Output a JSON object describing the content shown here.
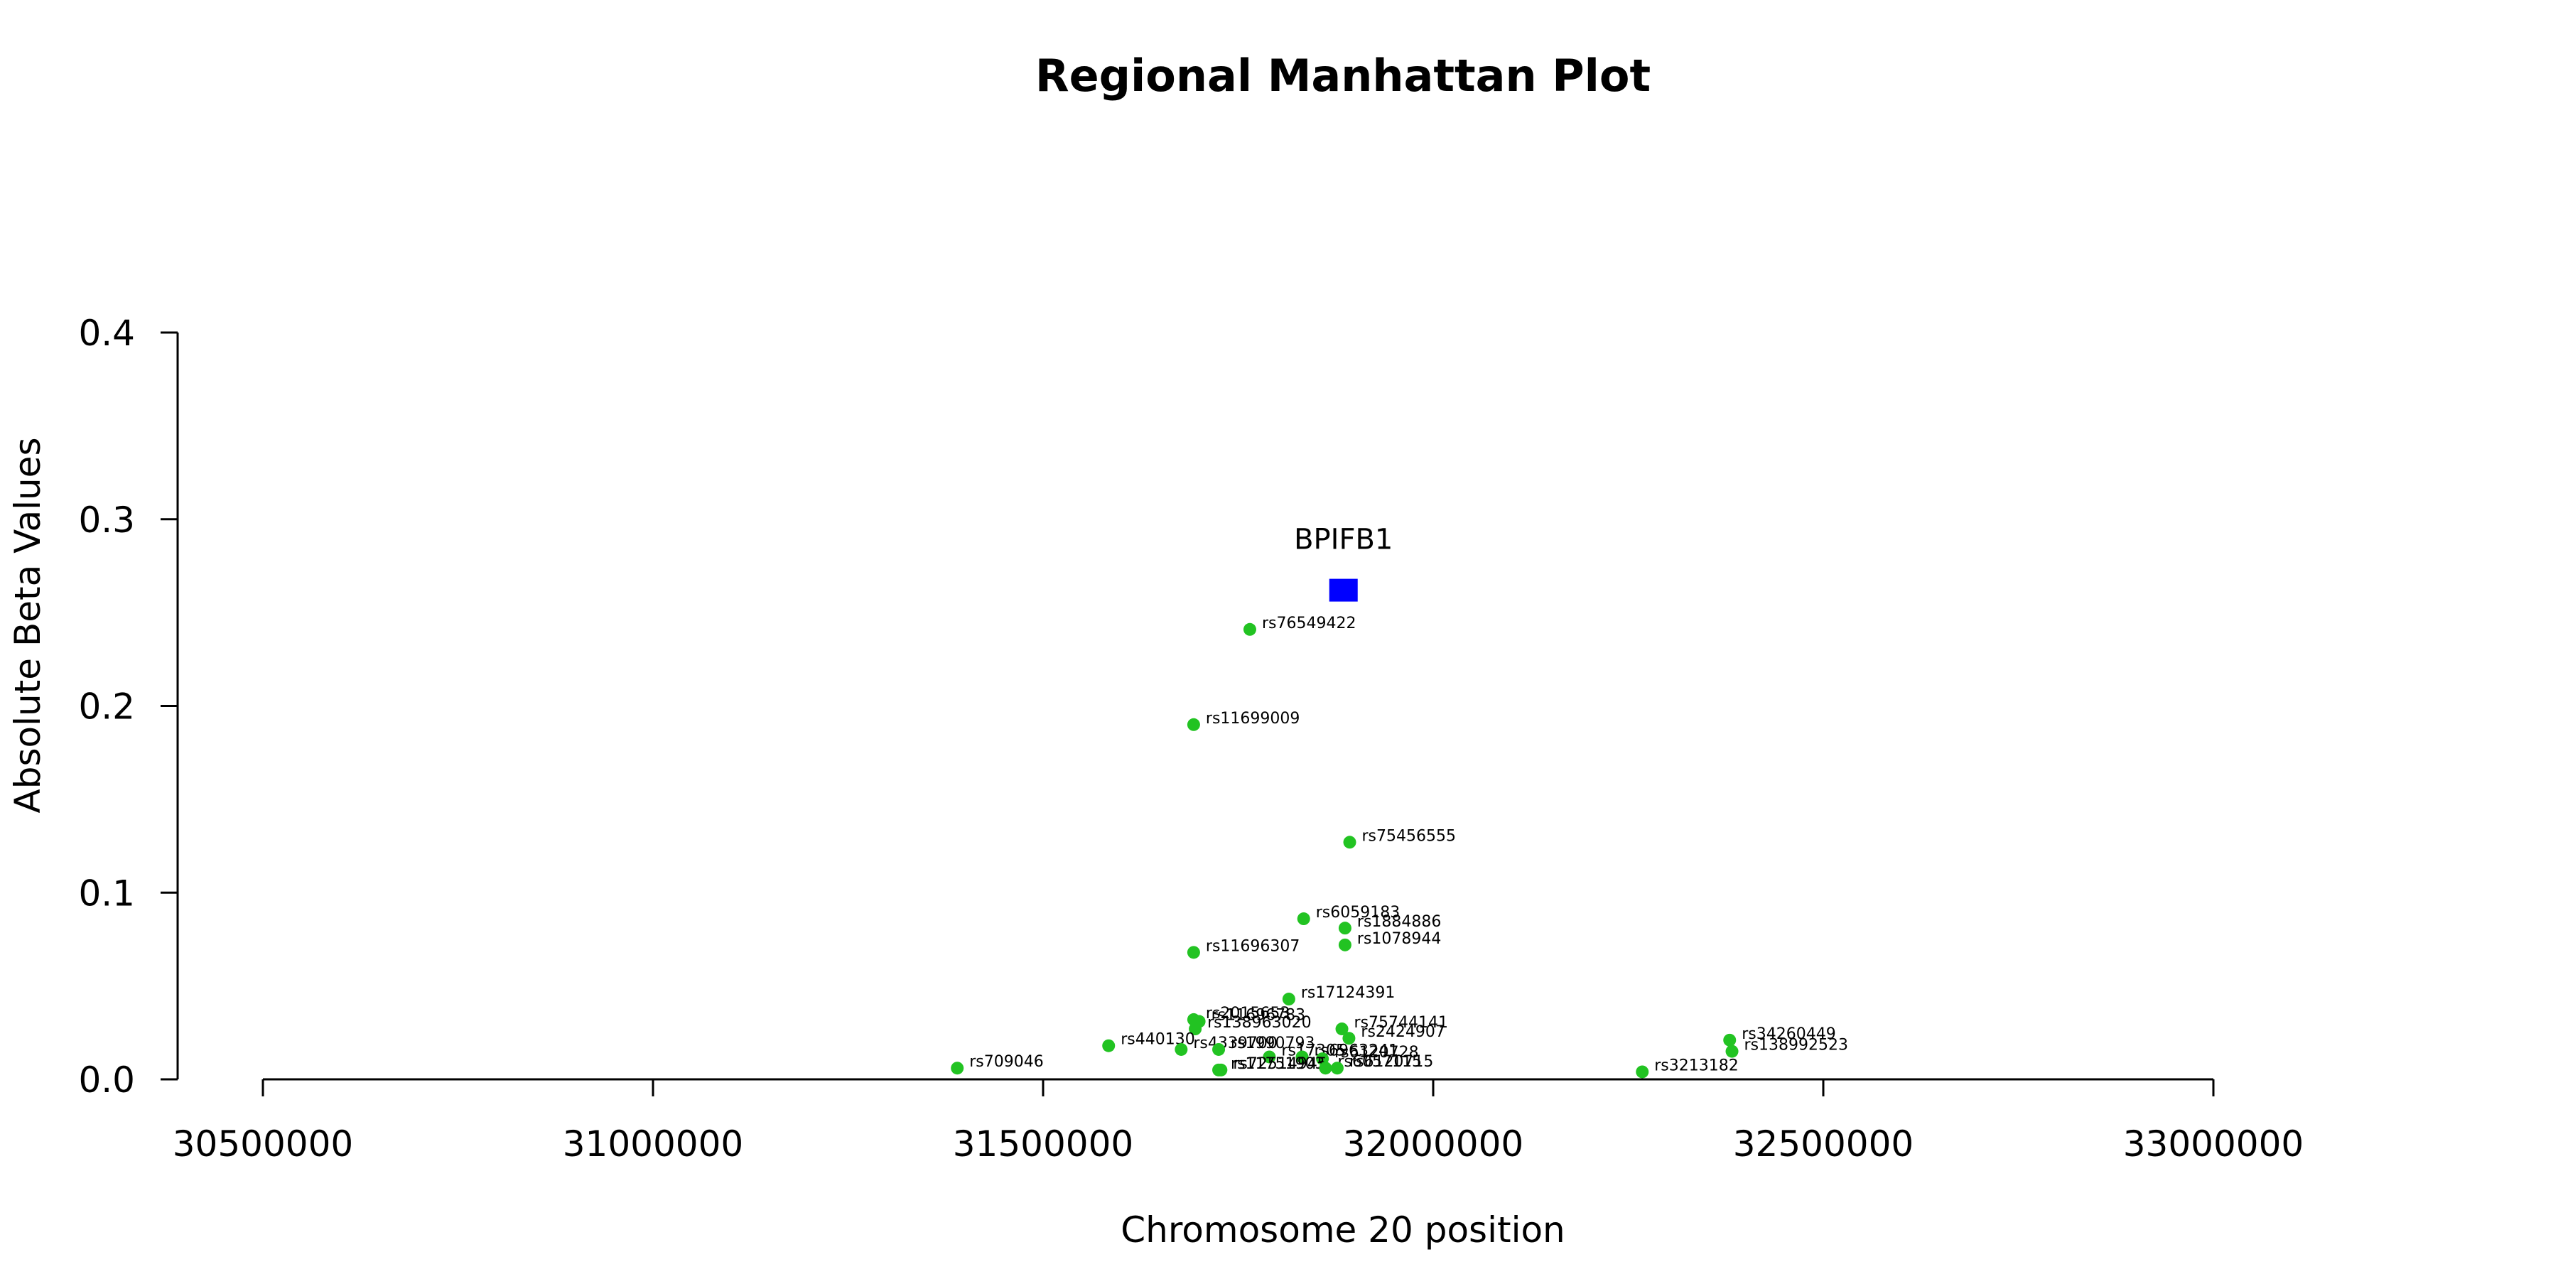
{
  "chart_data": {
    "type": "scatter",
    "title": "Regional Manhattan Plot",
    "xlabel": "Chromosome 20 position",
    "ylabel": "Absolute Beta Values",
    "xlim": [
      30500000,
      33000000
    ],
    "ylim": [
      0,
      0.4
    ],
    "xticks": [
      "30500000",
      "31000000",
      "31500000",
      "32000000",
      "32500000",
      "33000000"
    ],
    "yticks": [
      "0.0",
      "0.1",
      "0.2",
      "0.3",
      "0.4"
    ],
    "colors": {
      "snp": "#22c322",
      "gene": "#0000ff"
    },
    "gene": {
      "label": "BPIFB1",
      "x": 31885000,
      "y": 0.262
    },
    "points": [
      {
        "label": "rs76549422",
        "x": 31765000,
        "y": 0.241
      },
      {
        "label": "rs11699009",
        "x": 31693000,
        "y": 0.19
      },
      {
        "label": "rs75456555",
        "x": 31893000,
        "y": 0.127
      },
      {
        "label": "rs6059183",
        "x": 31834000,
        "y": 0.086
      },
      {
        "label": "rs1884886",
        "x": 31887000,
        "y": 0.081
      },
      {
        "label": "rs1078944",
        "x": 31887000,
        "y": 0.072
      },
      {
        "label": "rs11696307",
        "x": 31693000,
        "y": 0.068
      },
      {
        "label": "rs17124391",
        "x": 31815000,
        "y": 0.043
      },
      {
        "label": "rs2015653",
        "x": 31693000,
        "y": 0.032
      },
      {
        "label": "rs11696783",
        "x": 31700000,
        "y": 0.031
      },
      {
        "label": "rs138963020",
        "x": 31695000,
        "y": 0.027
      },
      {
        "label": "rs75744141",
        "x": 31883000,
        "y": 0.027
      },
      {
        "label": "rs2424907",
        "x": 31892000,
        "y": 0.022
      },
      {
        "label": "rs440130",
        "x": 31584000,
        "y": 0.018
      },
      {
        "label": "rs4339700",
        "x": 31677000,
        "y": 0.016
      },
      {
        "label": "rs1990793",
        "x": 31725000,
        "y": 0.016
      },
      {
        "label": "rs17305",
        "x": 31790000,
        "y": 0.012
      },
      {
        "label": "rs6963241",
        "x": 31832000,
        "y": 0.012
      },
      {
        "label": "rs6120728",
        "x": 31858000,
        "y": 0.011
      },
      {
        "label": "rs709046",
        "x": 31390000,
        "y": 0.006
      },
      {
        "label": "rs11751903",
        "x": 31725000,
        "y": 0.005
      },
      {
        "label": "rs72514945",
        "x": 31728000,
        "y": 0.005
      },
      {
        "label": "rs6057115",
        "x": 31862000,
        "y": 0.006
      },
      {
        "label": "rs6120715",
        "x": 31877000,
        "y": 0.006
      },
      {
        "label": "rs3213182",
        "x": 32268000,
        "y": 0.004
      },
      {
        "label": "rs34260449",
        "x": 32380000,
        "y": 0.021
      },
      {
        "label": "rs138992523",
        "x": 32383000,
        "y": 0.015
      }
    ]
  }
}
